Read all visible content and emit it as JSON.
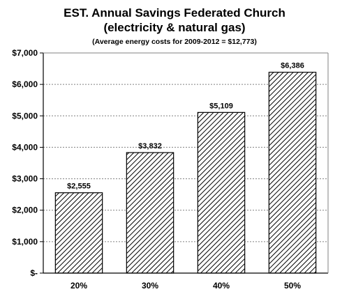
{
  "chart_data": {
    "type": "bar",
    "title": "EST. Annual Savings Federated Church",
    "title_line2": "(electricity & natural gas)",
    "subtitle": "(Average energy costs for 2009-2012  =  $12,773)",
    "xlabel": "",
    "ylabel": "",
    "categories": [
      "20%",
      "30%",
      "40%",
      "50%"
    ],
    "values": [
      2555,
      3832,
      5109,
      6386
    ],
    "data_labels": [
      "$2,555",
      "$3,832",
      "$5,109",
      "$6,386"
    ],
    "ylim": [
      0,
      7000
    ],
    "yticks": [
      0,
      1000,
      2000,
      3000,
      4000,
      5000,
      6000,
      7000
    ],
    "ytick_labels": [
      "$-",
      "$1,000",
      "$2,000",
      "$3,000",
      "$4,000",
      "$5,000",
      "$6,000",
      "$7,000"
    ],
    "grid": true,
    "bar_fill": "diagonal-hatch",
    "colors": {
      "bar_stroke": "#000000",
      "hatch": "#000000",
      "grid": "#808080",
      "axis": "#000000"
    }
  }
}
